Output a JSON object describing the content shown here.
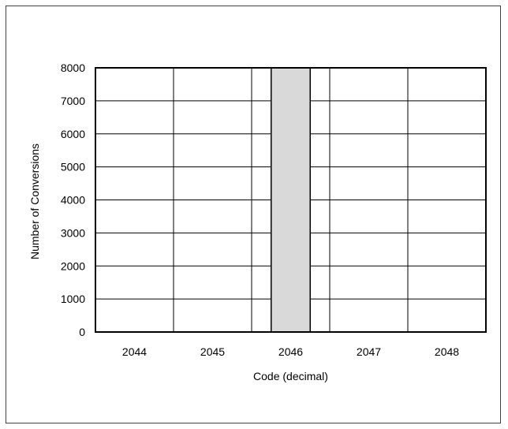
{
  "chart_data": {
    "type": "bar",
    "title": "",
    "xlabel": "Code (decimal)",
    "ylabel": "Number of Conversions",
    "categories": [
      "2044",
      "2045",
      "2046",
      "2047",
      "2048"
    ],
    "values": [
      0,
      0,
      8000,
      0,
      0
    ],
    "bar_center": 2046,
    "bar_width_codes": 0.5,
    "ylim": [
      0,
      8000
    ],
    "yticks": [
      0,
      1000,
      2000,
      3000,
      4000,
      5000,
      6000,
      7000,
      8000
    ],
    "grid": true,
    "legend": "none",
    "colors": {
      "bar_fill": "#d9d9d9",
      "bar_stroke": "#000000",
      "grid": "#000000",
      "frame": "#404040"
    }
  }
}
